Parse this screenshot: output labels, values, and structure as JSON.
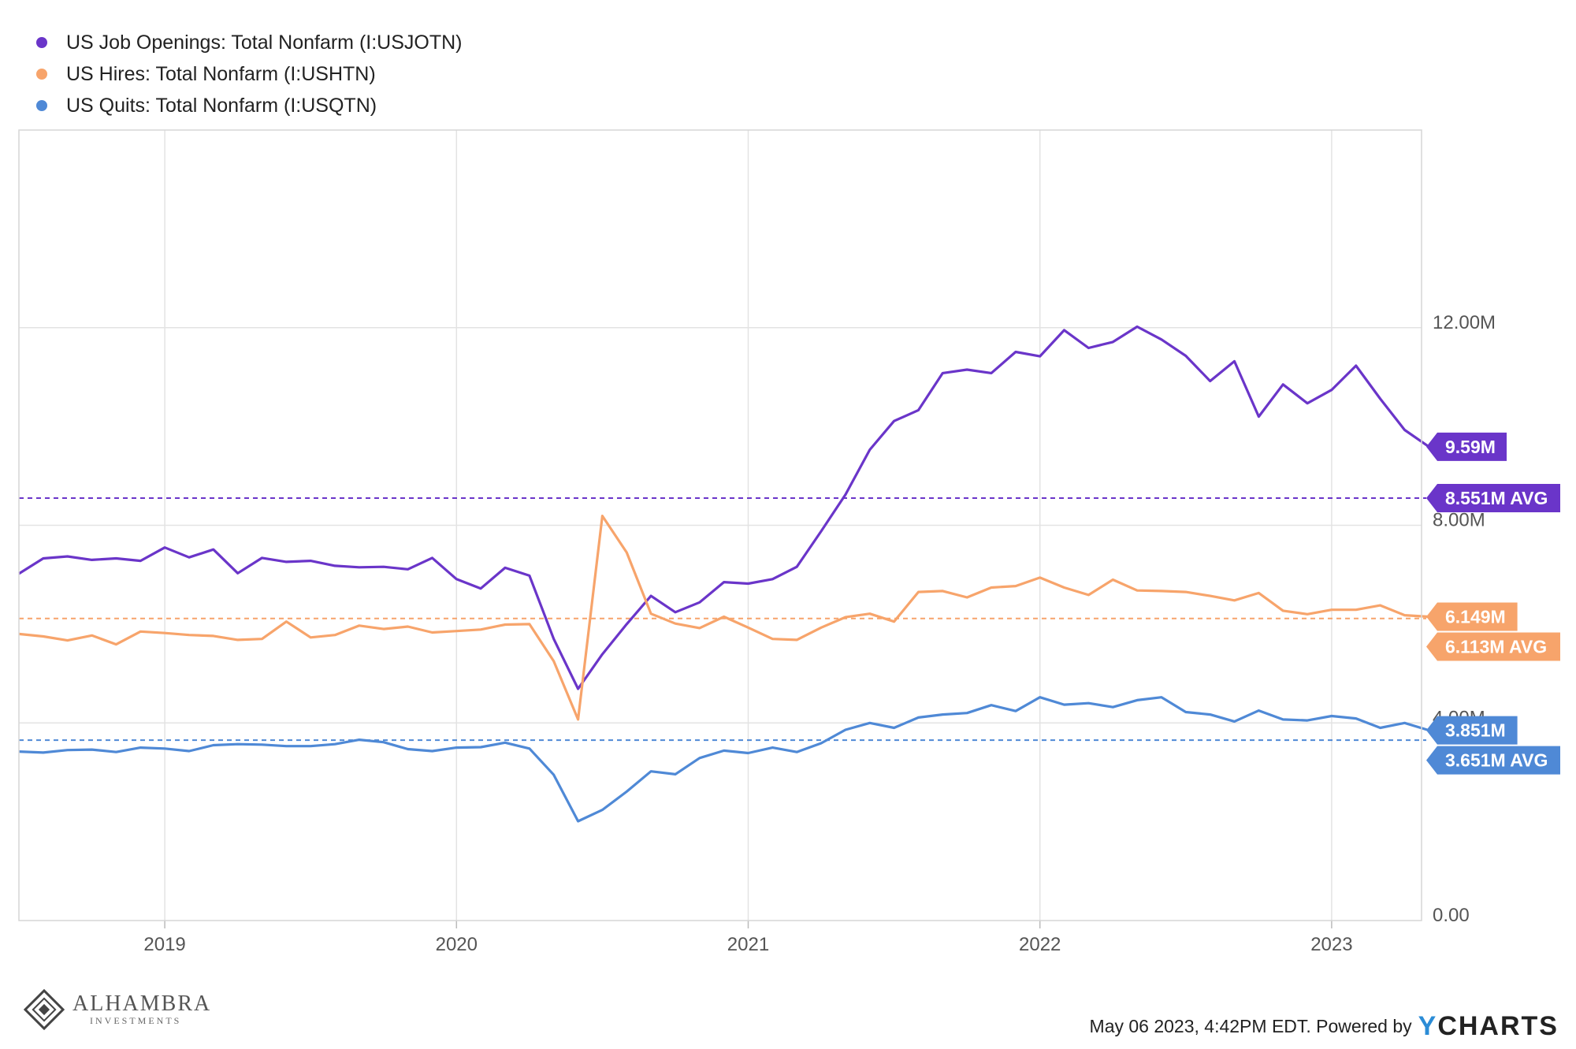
{
  "legend": [
    {
      "label": "US Job Openings: Total Nonfarm (I:USJOTN)",
      "color": "#6a35c9"
    },
    {
      "label": "US Hires: Total Nonfarm (I:USHTN)",
      "color": "#f7a46b"
    },
    {
      "label": "US Quits: Total Nonfarm (I:USQTN)",
      "color": "#4f89d6"
    }
  ],
  "chart_data": {
    "type": "line",
    "x_start": "2018-07",
    "x_ticks": [
      "2019",
      "2020",
      "2021",
      "2022",
      "2023"
    ],
    "y_ticks": [
      "0.00",
      "4.00M",
      "8.00M",
      "12.00M"
    ],
    "ylim": [
      0,
      16
    ],
    "y_unit": "millions",
    "grid": true,
    "legend_position": "top-left",
    "series": [
      {
        "name": "US Job Openings: Total Nonfarm (I:USJOTN)",
        "color": "#6a35c9",
        "end_label": "9.59M",
        "avg_label": "8.551M AVG",
        "average": 8.551,
        "values": [
          7.02,
          7.33,
          7.37,
          7.3,
          7.33,
          7.28,
          7.55,
          7.35,
          7.51,
          7.03,
          7.34,
          7.26,
          7.28,
          7.18,
          7.15,
          7.16,
          7.11,
          7.34,
          6.91,
          6.72,
          7.14,
          6.98,
          5.7,
          4.69,
          5.39,
          6.0,
          6.57,
          6.24,
          6.44,
          6.85,
          6.82,
          6.91,
          7.16,
          7.88,
          8.62,
          9.53,
          10.11,
          10.33,
          11.08,
          11.15,
          11.08,
          11.51,
          11.42,
          11.95,
          11.59,
          11.71,
          12.02,
          11.76,
          11.43,
          10.92,
          11.32,
          10.2,
          10.85,
          10.47,
          10.74,
          11.23,
          10.56,
          9.93,
          9.59
        ]
      },
      {
        "name": "US Hires: Total Nonfarm (I:USHTN)",
        "color": "#f7a46b",
        "end_label": "6.149M",
        "avg_label": "6.113M AVG",
        "average": 6.113,
        "values": [
          5.8,
          5.75,
          5.67,
          5.77,
          5.59,
          5.85,
          5.82,
          5.78,
          5.76,
          5.68,
          5.7,
          6.05,
          5.73,
          5.78,
          5.97,
          5.9,
          5.95,
          5.83,
          5.86,
          5.89,
          5.99,
          6.0,
          5.25,
          4.07,
          8.19,
          7.45,
          6.21,
          6.01,
          5.92,
          6.15,
          5.93,
          5.7,
          5.68,
          5.93,
          6.14,
          6.21,
          6.05,
          6.65,
          6.67,
          6.54,
          6.74,
          6.77,
          6.94,
          6.74,
          6.59,
          6.9,
          6.68,
          6.67,
          6.65,
          6.57,
          6.48,
          6.63,
          6.27,
          6.2,
          6.29,
          6.29,
          6.38,
          6.18,
          6.149
        ]
      },
      {
        "name": "US Quits: Total Nonfarm (I:USQTN)",
        "color": "#4f89d6",
        "end_label": "3.851M",
        "avg_label": "3.651M AVG",
        "average": 3.651,
        "values": [
          3.42,
          3.4,
          3.45,
          3.46,
          3.41,
          3.5,
          3.48,
          3.43,
          3.55,
          3.57,
          3.56,
          3.53,
          3.53,
          3.57,
          3.66,
          3.61,
          3.47,
          3.43,
          3.5,
          3.51,
          3.6,
          3.48,
          2.95,
          2.01,
          2.24,
          2.61,
          3.02,
          2.96,
          3.29,
          3.44,
          3.39,
          3.5,
          3.41,
          3.59,
          3.86,
          4.0,
          3.9,
          4.11,
          4.17,
          4.2,
          4.36,
          4.24,
          4.52,
          4.37,
          4.4,
          4.32,
          4.46,
          4.52,
          4.22,
          4.17,
          4.03,
          4.25,
          4.07,
          4.05,
          4.14,
          4.09,
          3.9,
          4.0,
          3.851
        ]
      }
    ]
  },
  "footer": {
    "logo_name": "ALHAMBRA",
    "logo_sub": "INVESTMENTS",
    "note": "May 06 2023, 4:42PM EDT. Powered by",
    "ycharts_y": "Y",
    "ycharts_rest": "CHARTS"
  }
}
